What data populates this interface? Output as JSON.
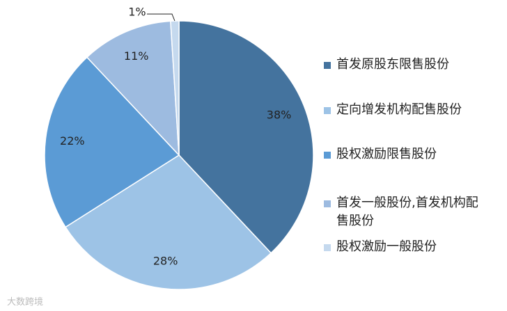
{
  "chart_data": {
    "type": "pie",
    "categories": [
      "首发原股东限售股份",
      "定向增发机构配售股份",
      "股权激励限售股份",
      "首发一般股份,首发机构配售股份",
      "股权激励一般股份"
    ],
    "values": [
      38,
      28,
      22,
      11,
      1
    ],
    "value_labels": [
      "38%",
      "28%",
      "22%",
      "11%",
      "1%"
    ],
    "colors": [
      "#44739e",
      "#9dc3e6",
      "#5b9bd5",
      "#9dbbe0",
      "#c5d9ee"
    ],
    "legend": "right"
  },
  "watermark": "大数跨境"
}
